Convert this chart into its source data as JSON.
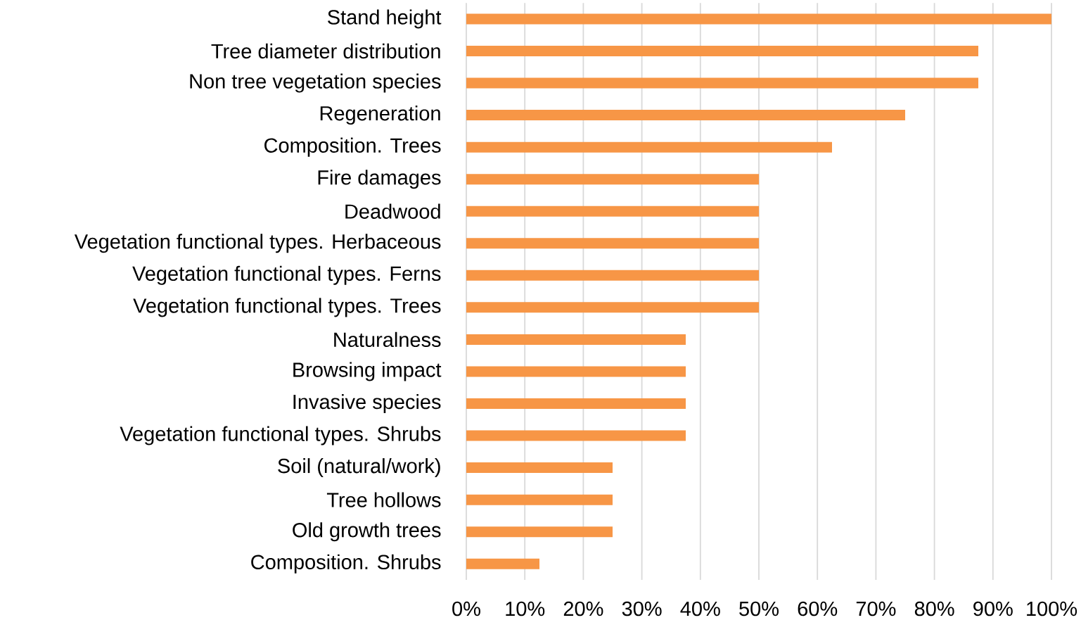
{
  "chart_data": {
    "type": "bar",
    "orientation": "horizontal",
    "categories": [
      "Stand height",
      "Tree diameter distribution",
      "Non tree vegetation species",
      "Regeneration",
      "Composition. Trees",
      "Fire damages",
      "Deadwood",
      "Vegetation functional types. Herbaceous",
      "Vegetation functional types. Ferns",
      "Vegetation functional types. Trees",
      "Naturalness",
      "Browsing impact",
      "Invasive species",
      "Vegetation functional types. Shrubs",
      "Soil (natural/work)",
      "Tree hollows",
      "Old growth trees",
      "Composition. Shrubs"
    ],
    "values": [
      100,
      87.5,
      87.5,
      75,
      62.5,
      50,
      50,
      50,
      50,
      50,
      37.5,
      37.5,
      37.5,
      37.5,
      25,
      25,
      25,
      12.5
    ],
    "color": "#f79646",
    "xlim": [
      0,
      100
    ],
    "xticks": [
      {
        "value": 0,
        "label": "0%"
      },
      {
        "value": 10,
        "label": "10%"
      },
      {
        "value": 20,
        "label": "20%"
      },
      {
        "value": 30,
        "label": "30%"
      },
      {
        "value": 40,
        "label": "40%"
      },
      {
        "value": 50,
        "label": "50%"
      },
      {
        "value": 60,
        "label": "60%"
      },
      {
        "value": 70,
        "label": "70%"
      },
      {
        "value": 80,
        "label": "80%"
      },
      {
        "value": 90,
        "label": "90%"
      },
      {
        "value": 100,
        "label": "100%"
      }
    ],
    "grid": "x"
  }
}
